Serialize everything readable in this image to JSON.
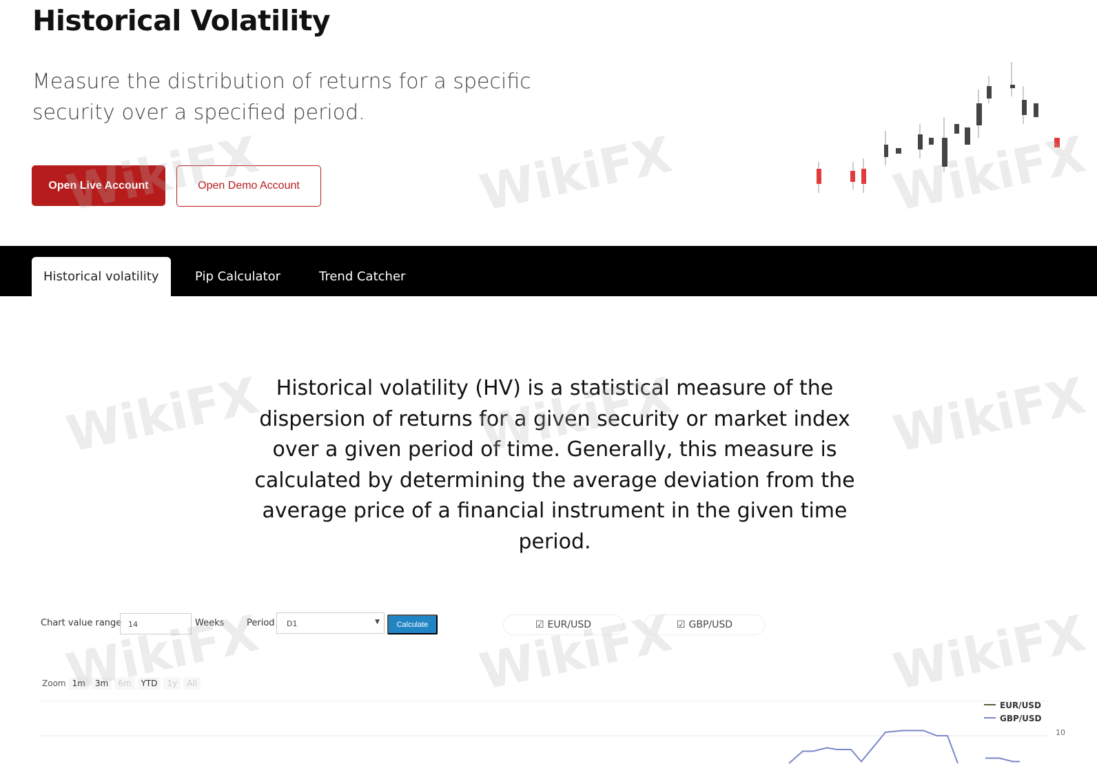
{
  "header": {
    "title": "Historical Volatility",
    "subtitle": "Measure the distribution of returns for a specific security over a specified period.",
    "live_button": "Open Live Account",
    "demo_button": "Open Demo Account"
  },
  "tabs": [
    {
      "label": "Historical volatility",
      "active": true
    },
    {
      "label": "Pip Calculator"
    },
    {
      "label": "Trend Catcher"
    }
  ],
  "description": "Historical volatility (HV) is a statistical measure of the dispersion of returns for a given security or market index over a given period of time. Generally, this measure is calculated by determining the average deviation from the average price of a financial instrument in the given time period.",
  "controls": {
    "range_label": "Chart value range",
    "range_value": "14",
    "range_unit": "Weeks",
    "period_label": "Period",
    "period_value": "D1",
    "calculate": "Calculate",
    "pairs": [
      {
        "label": "EUR/USD",
        "checked": true
      },
      {
        "label": "GBP/USD",
        "checked": true
      }
    ]
  },
  "zoom": {
    "label": "Zoom",
    "options": [
      {
        "label": "1m",
        "enabled": true
      },
      {
        "label": "3m",
        "enabled": true
      },
      {
        "label": "6m",
        "enabled": false
      },
      {
        "label": "YTD",
        "enabled": true
      },
      {
        "label": "1y",
        "enabled": false
      },
      {
        "label": "All",
        "enabled": false
      }
    ]
  },
  "watermark": "WikiFX",
  "colors": {
    "brand": "#b71c1c",
    "accent": "#2185c5",
    "gbp": "#7b86c9",
    "eur": "#5a5a3a"
  },
  "chart_data": {
    "type": "line",
    "legend": [
      "EUR/USD",
      "GBP/USD"
    ],
    "legend_position": "top-right",
    "y_ticks": [
      "10"
    ],
    "grid": true,
    "series": [
      {
        "name": "GBP/USD",
        "values": [
          8.4,
          9.1,
          9.1,
          9.3,
          9.2,
          9.2,
          8.5,
          10.2,
          10.3,
          10.3,
          10,
          10,
          8.4,
          null,
          8.7,
          8.7,
          8.5,
          8.5
        ]
      }
    ]
  }
}
